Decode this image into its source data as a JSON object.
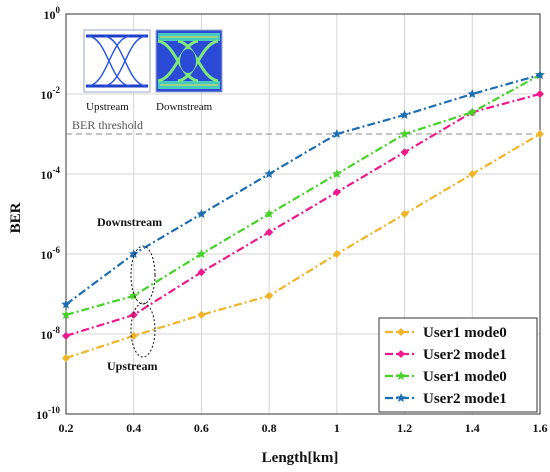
{
  "chart_data": {
    "type": "line",
    "xlabel": "Length[km]",
    "ylabel": "BER",
    "x": [
      0.2,
      0.4,
      0.6,
      0.8,
      1.0,
      1.2,
      1.4,
      1.6
    ],
    "x_tick_labels": [
      "0.2",
      "0.4",
      "0.6",
      "0.8",
      "1",
      "1.2",
      "1.4",
      "1.6"
    ],
    "xlim": [
      0.2,
      1.6
    ],
    "ylim": [
      1e-10,
      1
    ],
    "y_scale": "log",
    "y_ticks": [
      {
        "base": "10",
        "exp": "0",
        "value": 1
      },
      {
        "base": "10",
        "exp": "-2",
        "value": 0.01
      },
      {
        "base": "10",
        "exp": "-4",
        "value": 0.0001
      },
      {
        "base": "10",
        "exp": "-6",
        "value": 1e-06
      },
      {
        "base": "10",
        "exp": "-8",
        "value": 1e-08
      },
      {
        "base": "10",
        "exp": "-10",
        "value": 1e-10
      }
    ],
    "grid": true,
    "legend_position": "bottom-right",
    "series": [
      {
        "name": "User1 mode0",
        "color": "#f0b428",
        "marker": "diamond",
        "values": [
          2.5e-09,
          9e-09,
          3e-08,
          9e-08,
          1e-06,
          1e-05,
          0.0001,
          0.001
        ]
      },
      {
        "name": "User2 mode1",
        "color": "#f0198c",
        "marker": "diamond",
        "values": [
          9e-09,
          3e-08,
          3.5e-07,
          3.5e-06,
          3.5e-05,
          0.00035,
          0.0035,
          0.01
        ]
      },
      {
        "name": "User1 mode0",
        "color": "#46d228",
        "marker": "star",
        "values": [
          3e-08,
          9e-08,
          1e-06,
          1e-05,
          0.0001,
          0.001,
          0.0035,
          0.03
        ]
      },
      {
        "name": "User2 mode1",
        "color": "#1e6eb4",
        "marker": "star",
        "values": [
          5.5e-08,
          1e-06,
          1e-05,
          0.0001,
          0.001,
          0.003,
          0.01,
          0.03
        ]
      }
    ],
    "threshold": {
      "label": "BER threshold",
      "value": 0.001
    },
    "annotations": {
      "downstream": "Downstream",
      "upstream": "Upstream"
    },
    "insets": {
      "left_caption": "Upstream",
      "right_caption": "Downstream"
    }
  }
}
